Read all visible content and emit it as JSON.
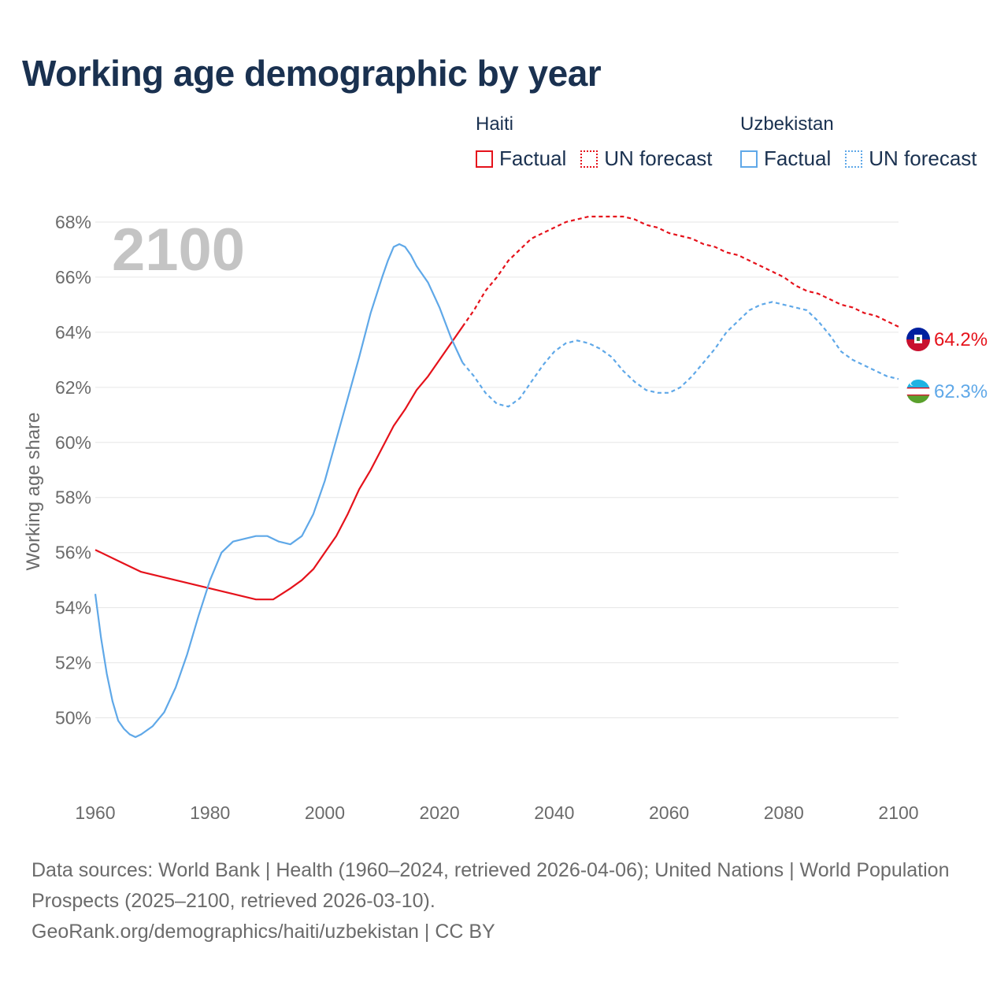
{
  "title": "Working age demographic by year",
  "year_watermark": "2100",
  "legend": {
    "groups": [
      {
        "name": "Haiti",
        "color": "#e5121b",
        "items": [
          {
            "label": "Factual",
            "style": "solid"
          },
          {
            "label": "UN forecast",
            "style": "dotted"
          }
        ]
      },
      {
        "name": "Uzbekistan",
        "color": "#5fa8e8",
        "items": [
          {
            "label": "Factual",
            "style": "solid"
          },
          {
            "label": "UN forecast",
            "style": "dotted"
          }
        ]
      }
    ]
  },
  "footer": {
    "sources": "Data sources: World Bank | Health (1960–2024, retrieved 2026-04-06); United Nations | World Population Prospects (2025–2100, retrieved 2026-03-10).",
    "credit": "GeoRank.org/demographics/haiti/uzbekistan | CC BY"
  },
  "chart_data": {
    "type": "line",
    "title": "Working age demographic by year",
    "xlabel": "",
    "ylabel": "Working age share",
    "xlim": [
      1960,
      2100
    ],
    "ylim": [
      47.5,
      69
    ],
    "x_ticks": [
      1960,
      1980,
      2000,
      2020,
      2040,
      2060,
      2080,
      2100
    ],
    "y_ticks": [
      50,
      52,
      54,
      56,
      58,
      60,
      62,
      64,
      66,
      68
    ],
    "y_tick_suffix": "%",
    "forecast_start": 2024,
    "grid": true,
    "series": [
      {
        "name": "Haiti",
        "color": "#e5121b",
        "end_label": "64.2%",
        "points": [
          [
            1960,
            56.1
          ],
          [
            1964,
            55.7
          ],
          [
            1968,
            55.3
          ],
          [
            1972,
            55.1
          ],
          [
            1976,
            54.9
          ],
          [
            1980,
            54.7
          ],
          [
            1984,
            54.5
          ],
          [
            1988,
            54.3
          ],
          [
            1991,
            54.3
          ],
          [
            1994,
            54.7
          ],
          [
            1996,
            55.0
          ],
          [
            1998,
            55.4
          ],
          [
            2000,
            56.0
          ],
          [
            2002,
            56.6
          ],
          [
            2004,
            57.4
          ],
          [
            2006,
            58.3
          ],
          [
            2008,
            59.0
          ],
          [
            2010,
            59.8
          ],
          [
            2012,
            60.6
          ],
          [
            2014,
            61.2
          ],
          [
            2016,
            61.9
          ],
          [
            2018,
            62.4
          ],
          [
            2020,
            63.0
          ],
          [
            2022,
            63.6
          ],
          [
            2024,
            64.2
          ],
          [
            2026,
            64.8
          ],
          [
            2028,
            65.5
          ],
          [
            2030,
            66.0
          ],
          [
            2032,
            66.6
          ],
          [
            2034,
            67.0
          ],
          [
            2036,
            67.4
          ],
          [
            2038,
            67.6
          ],
          [
            2040,
            67.8
          ],
          [
            2042,
            68.0
          ],
          [
            2044,
            68.1
          ],
          [
            2046,
            68.2
          ],
          [
            2048,
            68.2
          ],
          [
            2052,
            68.2
          ],
          [
            2054,
            68.1
          ],
          [
            2056,
            67.9
          ],
          [
            2058,
            67.8
          ],
          [
            2060,
            67.6
          ],
          [
            2062,
            67.5
          ],
          [
            2064,
            67.4
          ],
          [
            2066,
            67.2
          ],
          [
            2068,
            67.1
          ],
          [
            2070,
            66.9
          ],
          [
            2072,
            66.8
          ],
          [
            2074,
            66.6
          ],
          [
            2076,
            66.4
          ],
          [
            2078,
            66.2
          ],
          [
            2080,
            66.0
          ],
          [
            2082,
            65.7
          ],
          [
            2084,
            65.5
          ],
          [
            2086,
            65.4
          ],
          [
            2088,
            65.2
          ],
          [
            2090,
            65.0
          ],
          [
            2092,
            64.9
          ],
          [
            2094,
            64.7
          ],
          [
            2096,
            64.6
          ],
          [
            2098,
            64.4
          ],
          [
            2100,
            64.2
          ]
        ]
      },
      {
        "name": "Uzbekistan",
        "color": "#5fa8e8",
        "end_label": "62.3%",
        "points": [
          [
            1960,
            54.5
          ],
          [
            1961,
            52.9
          ],
          [
            1962,
            51.6
          ],
          [
            1963,
            50.6
          ],
          [
            1964,
            49.9
          ],
          [
            1965,
            49.6
          ],
          [
            1966,
            49.4
          ],
          [
            1967,
            49.3
          ],
          [
            1968,
            49.4
          ],
          [
            1970,
            49.7
          ],
          [
            1972,
            50.2
          ],
          [
            1974,
            51.1
          ],
          [
            1976,
            52.3
          ],
          [
            1978,
            53.7
          ],
          [
            1980,
            55.0
          ],
          [
            1982,
            56.0
          ],
          [
            1984,
            56.4
          ],
          [
            1986,
            56.5
          ],
          [
            1988,
            56.6
          ],
          [
            1990,
            56.6
          ],
          [
            1992,
            56.4
          ],
          [
            1994,
            56.3
          ],
          [
            1996,
            56.6
          ],
          [
            1998,
            57.4
          ],
          [
            2000,
            58.6
          ],
          [
            2002,
            60.1
          ],
          [
            2004,
            61.6
          ],
          [
            2006,
            63.1
          ],
          [
            2008,
            64.7
          ],
          [
            2010,
            66.0
          ],
          [
            2011,
            66.6
          ],
          [
            2012,
            67.1
          ],
          [
            2013,
            67.2
          ],
          [
            2014,
            67.1
          ],
          [
            2015,
            66.8
          ],
          [
            2016,
            66.4
          ],
          [
            2018,
            65.8
          ],
          [
            2020,
            64.9
          ],
          [
            2022,
            63.8
          ],
          [
            2024,
            62.9
          ],
          [
            2026,
            62.4
          ],
          [
            2028,
            61.8
          ],
          [
            2030,
            61.4
          ],
          [
            2032,
            61.3
          ],
          [
            2034,
            61.6
          ],
          [
            2036,
            62.2
          ],
          [
            2038,
            62.8
          ],
          [
            2040,
            63.3
          ],
          [
            2042,
            63.6
          ],
          [
            2044,
            63.7
          ],
          [
            2046,
            63.6
          ],
          [
            2048,
            63.4
          ],
          [
            2050,
            63.1
          ],
          [
            2052,
            62.6
          ],
          [
            2054,
            62.2
          ],
          [
            2056,
            61.9
          ],
          [
            2058,
            61.8
          ],
          [
            2060,
            61.8
          ],
          [
            2062,
            62.0
          ],
          [
            2064,
            62.4
          ],
          [
            2066,
            62.9
          ],
          [
            2068,
            63.4
          ],
          [
            2070,
            64.0
          ],
          [
            2072,
            64.4
          ],
          [
            2074,
            64.8
          ],
          [
            2076,
            65.0
          ],
          [
            2078,
            65.1
          ],
          [
            2080,
            65.0
          ],
          [
            2082,
            64.9
          ],
          [
            2084,
            64.8
          ],
          [
            2086,
            64.4
          ],
          [
            2088,
            63.9
          ],
          [
            2090,
            63.3
          ],
          [
            2092,
            63.0
          ],
          [
            2094,
            62.8
          ],
          [
            2096,
            62.6
          ],
          [
            2098,
            62.4
          ],
          [
            2100,
            62.3
          ]
        ]
      }
    ]
  }
}
